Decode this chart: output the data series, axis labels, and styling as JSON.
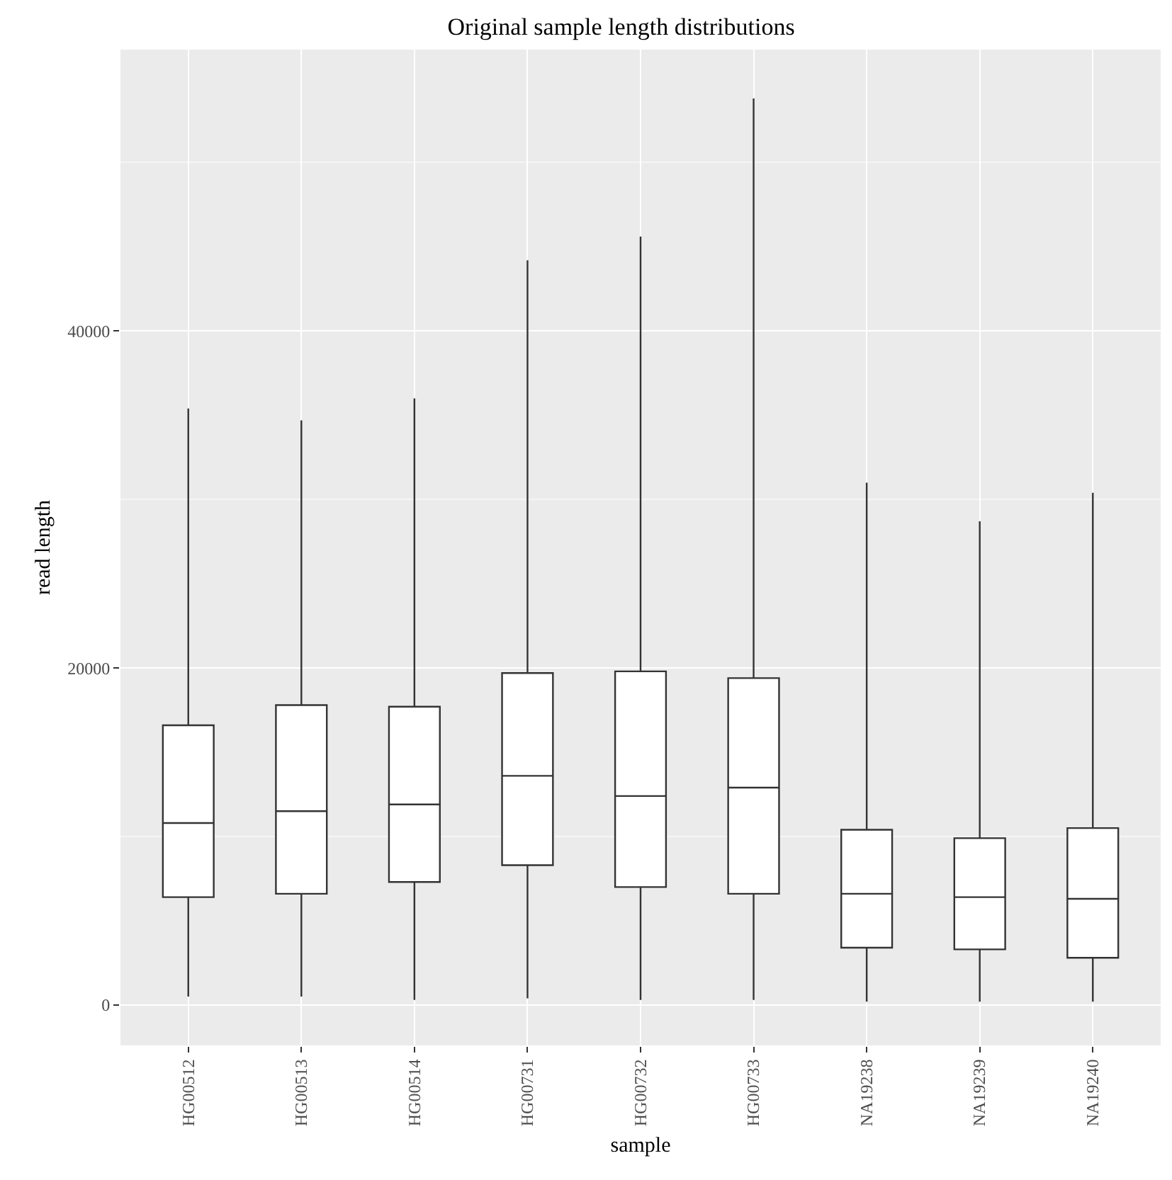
{
  "chart_data": {
    "type": "box",
    "title": "Original sample length distributions",
    "xlabel": "sample",
    "ylabel": "read length",
    "categories": [
      "HG00512",
      "HG00513",
      "HG00514",
      "HG00731",
      "HG00732",
      "HG00733",
      "NA19238",
      "NA19239",
      "NA19240"
    ],
    "boxes": [
      {
        "low": 500,
        "q1": 6400,
        "median": 10800,
        "q3": 16600,
        "high": 35400
      },
      {
        "low": 500,
        "q1": 6600,
        "median": 11500,
        "q3": 17800,
        "high": 34700
      },
      {
        "low": 300,
        "q1": 7300,
        "median": 11900,
        "q3": 17700,
        "high": 36000
      },
      {
        "low": 400,
        "q1": 8300,
        "median": 13600,
        "q3": 19700,
        "high": 44200
      },
      {
        "low": 300,
        "q1": 7000,
        "median": 12400,
        "q3": 19800,
        "high": 45600
      },
      {
        "low": 300,
        "q1": 6600,
        "median": 12900,
        "q3": 19400,
        "high": 53800
      },
      {
        "low": 200,
        "q1": 3400,
        "median": 6600,
        "q3": 10400,
        "high": 31000
      },
      {
        "low": 200,
        "q1": 3300,
        "median": 6400,
        "q3": 9900,
        "high": 28700
      },
      {
        "low": 200,
        "q1": 2800,
        "median": 6300,
        "q3": 10500,
        "high": 30400
      }
    ],
    "color": "#333333",
    "ylim": [
      -2400,
      56700
    ],
    "yticks": [
      0,
      20000,
      40000
    ],
    "grid": true
  }
}
